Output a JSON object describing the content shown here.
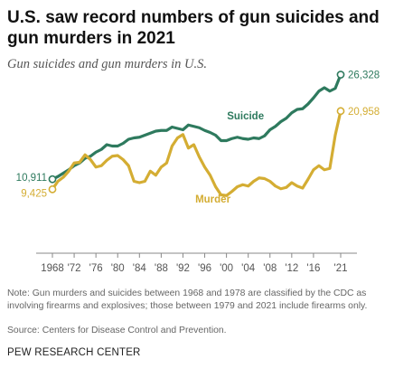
{
  "title": "U.S. saw record numbers of gun suicides and gun murders in 2021",
  "subtitle": "Gun suicides and gun murders in U.S.",
  "note": "Note: Gun murders and suicides between 1968 and 1978 are classified by the CDC as involving firearms and explosives; those between 1979 and 2021 include firearms only.",
  "source": "Source: Centers for Disease Control and Prevention.",
  "org": "PEW RESEARCH CENTER",
  "colors": {
    "suicide": "#2e7a5e",
    "murder": "#d4ad33",
    "axis": "#888888",
    "tick_text": "#555555"
  },
  "chart_data": {
    "type": "line",
    "xlim": [
      1968,
      2021
    ],
    "ylim": [
      0,
      28000
    ],
    "x_tick_labels": [
      "1968",
      "'72",
      "'76",
      "'80",
      "'84",
      "'88",
      "'92",
      "'96",
      "'00",
      "'04",
      "'08",
      "'12",
      "'16",
      "'21"
    ],
    "x_tick_years": [
      1968,
      1972,
      1976,
      1980,
      1984,
      1988,
      1992,
      1996,
      2000,
      2004,
      2008,
      2012,
      2016,
      2021
    ],
    "x": [
      1968,
      1969,
      1970,
      1971,
      1972,
      1973,
      1974,
      1975,
      1976,
      1977,
      1978,
      1979,
      1980,
      1981,
      1982,
      1983,
      1984,
      1985,
      1986,
      1987,
      1988,
      1989,
      1990,
      1991,
      1992,
      1993,
      1994,
      1995,
      1996,
      1997,
      1998,
      1999,
      2000,
      2001,
      2002,
      2003,
      2004,
      2005,
      2006,
      2007,
      2008,
      2009,
      2010,
      2011,
      2012,
      2013,
      2014,
      2015,
      2016,
      2017,
      2018,
      2019,
      2020,
      2021
    ],
    "series": [
      {
        "name": "Suicide",
        "start_label": "10,911",
        "end_label": "26,328",
        "values": [
          10911,
          11300,
          11800,
          12300,
          12900,
          13300,
          14000,
          14300,
          14900,
          15300,
          16000,
          15800,
          15800,
          16200,
          16800,
          17000,
          17100,
          17400,
          17700,
          18000,
          18100,
          18100,
          18600,
          18400,
          18200,
          18900,
          18700,
          18500,
          18100,
          17800,
          17400,
          16600,
          16600,
          16900,
          17100,
          16900,
          16800,
          17000,
          16900,
          17300,
          18200,
          18700,
          19400,
          19900,
          20700,
          21200,
          21300,
          22000,
          22900,
          23900,
          24400,
          23900,
          24300,
          26328
        ]
      },
      {
        "name": "Murder",
        "start_label": "9,425",
        "end_label": "20,958",
        "values": [
          9425,
          10600,
          11200,
          12100,
          13300,
          13400,
          14500,
          13800,
          12700,
          12900,
          13700,
          14300,
          14400,
          13800,
          12900,
          10600,
          10400,
          10600,
          12100,
          11500,
          12700,
          13300,
          15800,
          17000,
          17500,
          15500,
          16000,
          14200,
          12700,
          11500,
          9800,
          8600,
          8500,
          9100,
          9800,
          10100,
          9900,
          10600,
          11100,
          11000,
          10600,
          9900,
          9500,
          9700,
          10400,
          9900,
          9600,
          10900,
          12300,
          12900,
          12300,
          12500,
          17400,
          20958
        ]
      }
    ]
  }
}
